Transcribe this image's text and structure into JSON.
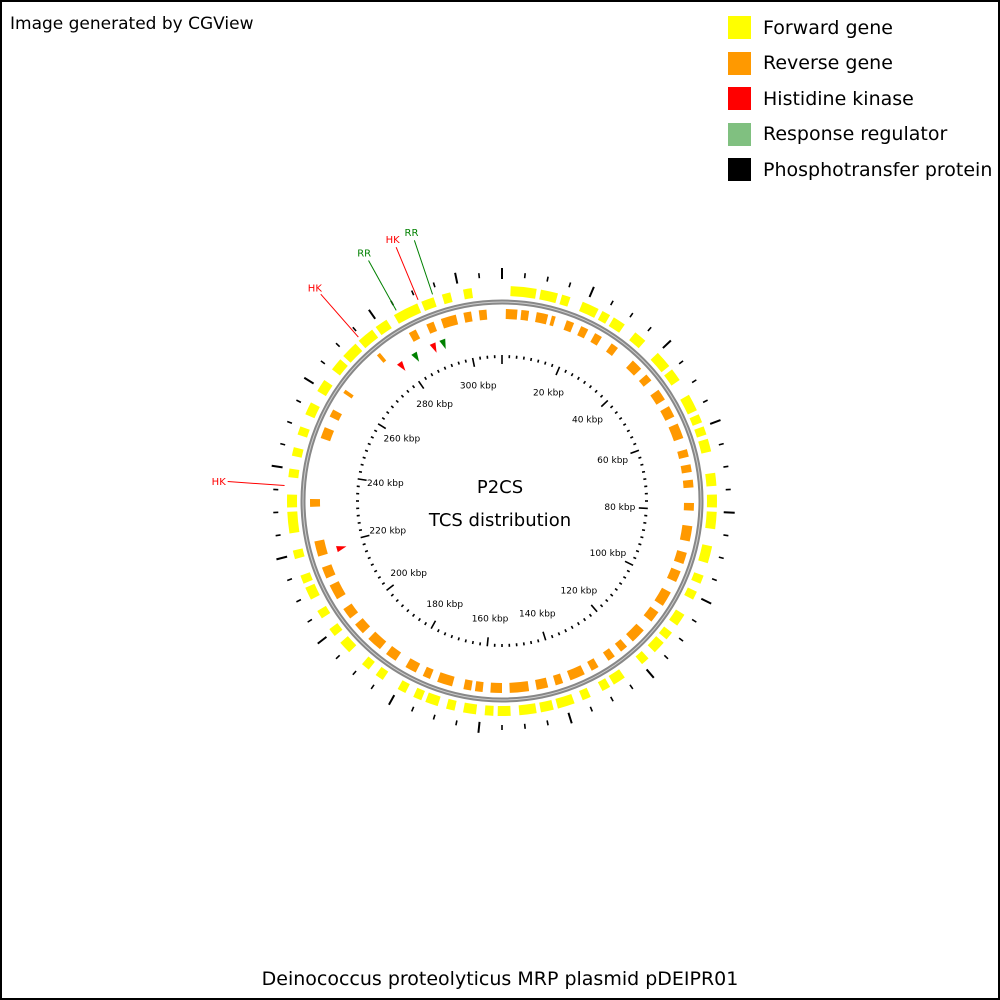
{
  "header": {
    "credit": "Image generated by CGView"
  },
  "legend": {
    "items": [
      {
        "label": "Forward gene",
        "color": "#ffff00"
      },
      {
        "label": "Reverse gene",
        "color": "#ff9900"
      },
      {
        "label": "Histidine kinase",
        "color": "#ff0000"
      },
      {
        "label": "Response regulator",
        "color": "#80c080"
      },
      {
        "label": "Phosphotransfer protein",
        "color": "#000000"
      }
    ]
  },
  "map": {
    "title_line1": "P2CS",
    "title_line2": "TCS distribution",
    "sequence_length_kbp": 310,
    "backbone_color": "#888888",
    "kbp_labels": [
      {
        "kbp": 20,
        "text": "20 kbp"
      },
      {
        "kbp": 40,
        "text": "40 kbp"
      },
      {
        "kbp": 60,
        "text": "60 kbp"
      },
      {
        "kbp": 80,
        "text": "80 kbp"
      },
      {
        "kbp": 100,
        "text": "100 kbp"
      },
      {
        "kbp": 120,
        "text": "120 kbp"
      },
      {
        "kbp": 140,
        "text": "140 kbp"
      },
      {
        "kbp": 160,
        "text": "160 kbp"
      },
      {
        "kbp": 180,
        "text": "180 kbp"
      },
      {
        "kbp": 200,
        "text": "200 kbp"
      },
      {
        "kbp": 220,
        "text": "220 kbp"
      },
      {
        "kbp": 240,
        "text": "240 kbp"
      },
      {
        "kbp": 260,
        "text": "260 kbp"
      },
      {
        "kbp": 280,
        "text": "280 kbp"
      },
      {
        "kbp": 300,
        "text": "300 kbp"
      }
    ],
    "forward_genes_kbp": [
      [
        2,
        8
      ],
      [
        9,
        13
      ],
      [
        14,
        16
      ],
      [
        19,
        23
      ],
      [
        24,
        26
      ],
      [
        27,
        30
      ],
      [
        33,
        36
      ],
      [
        40,
        44
      ],
      [
        45,
        48
      ],
      [
        52,
        56
      ],
      [
        57,
        59
      ],
      [
        60,
        62
      ],
      [
        63,
        66
      ],
      [
        71,
        74
      ],
      [
        76,
        79
      ],
      [
        80,
        84
      ],
      [
        88,
        92
      ],
      [
        95,
        97
      ],
      [
        99,
        101
      ],
      [
        105,
        108
      ],
      [
        110,
        112
      ],
      [
        113,
        116
      ],
      [
        118,
        120
      ],
      [
        125,
        128
      ],
      [
        129,
        131
      ],
      [
        134,
        136
      ],
      [
        138,
        142
      ],
      [
        143,
        146
      ],
      [
        147,
        151
      ],
      [
        153,
        156
      ],
      [
        157,
        159
      ],
      [
        161,
        164
      ],
      [
        166,
        168
      ],
      [
        170,
        173
      ],
      [
        174,
        176
      ],
      [
        178,
        180
      ],
      [
        184,
        186
      ],
      [
        188,
        190
      ],
      [
        194,
        197
      ],
      [
        199,
        201
      ],
      [
        204,
        206
      ],
      [
        209,
        212
      ],
      [
        213,
        215
      ],
      [
        219,
        221
      ],
      [
        225,
        230
      ],
      [
        231,
        234
      ],
      [
        238,
        240
      ],
      [
        243,
        245
      ],
      [
        248,
        250
      ],
      [
        253,
        256
      ],
      [
        259,
        262
      ],
      [
        265,
        268
      ],
      [
        269,
        273
      ],
      [
        274,
        278
      ],
      [
        279,
        282
      ],
      [
        284,
        290
      ],
      [
        291,
        294
      ],
      [
        296,
        298
      ],
      [
        301,
        303
      ]
    ],
    "reverse_genes_kbp": [
      [
        1,
        4
      ],
      [
        5,
        7
      ],
      [
        9,
        12
      ],
      [
        13,
        14
      ],
      [
        17,
        19
      ],
      [
        21,
        23
      ],
      [
        25,
        27
      ],
      [
        30,
        32
      ],
      [
        37,
        40
      ],
      [
        42,
        44
      ],
      [
        47,
        50
      ],
      [
        52,
        55
      ],
      [
        57,
        61
      ],
      [
        64,
        66
      ],
      [
        68,
        70
      ],
      [
        72,
        74
      ],
      [
        78,
        80
      ],
      [
        84,
        88
      ],
      [
        91,
        94
      ],
      [
        96,
        99
      ],
      [
        102,
        106
      ],
      [
        108,
        111
      ],
      [
        114,
        118
      ],
      [
        120,
        122
      ],
      [
        124,
        126
      ],
      [
        129,
        131
      ],
      [
        133,
        137
      ],
      [
        139,
        141
      ],
      [
        143,
        146
      ],
      [
        148,
        153
      ],
      [
        155,
        158
      ],
      [
        160,
        162
      ],
      [
        163,
        165
      ],
      [
        168,
        172
      ],
      [
        174,
        176
      ],
      [
        178,
        181
      ],
      [
        184,
        187
      ],
      [
        189,
        193
      ],
      [
        195,
        198
      ],
      [
        200,
        203
      ],
      [
        206,
        210
      ],
      [
        212,
        215
      ],
      [
        218,
        222
      ],
      [
        231,
        233
      ],
      [
        249,
        252
      ],
      [
        255,
        257
      ],
      [
        262,
        263
      ],
      [
        275,
        276
      ],
      [
        285,
        287
      ],
      [
        290,
        292
      ],
      [
        294,
        298
      ],
      [
        300,
        302
      ],
      [
        304,
        306
      ]
    ],
    "tcs_markers": [
      {
        "kbp": 218.5,
        "type": "HK",
        "color": "#ff0000"
      },
      {
        "kbp": 278.5,
        "type": "HK",
        "color": "#ff0000"
      },
      {
        "kbp": 283.5,
        "type": "RR",
        "color": "#008000"
      },
      {
        "kbp": 289.5,
        "type": "HK",
        "color": "#ff0000"
      },
      {
        "kbp": 292.5,
        "type": "RR",
        "color": "#008000"
      }
    ],
    "callouts": [
      {
        "kbp": 236,
        "text": "HK",
        "color": "#ff0000"
      },
      {
        "kbp": 274.5,
        "text": "HK",
        "color": "#ff0000"
      },
      {
        "kbp": 285,
        "text": "RR",
        "color": "#008000"
      },
      {
        "kbp": 290.5,
        "text": "HK",
        "color": "#ff0000"
      },
      {
        "kbp": 294,
        "text": "RR",
        "color": "#008000"
      }
    ]
  },
  "caption": "Deinococcus proteolyticus MRP plasmid pDEIPR01"
}
